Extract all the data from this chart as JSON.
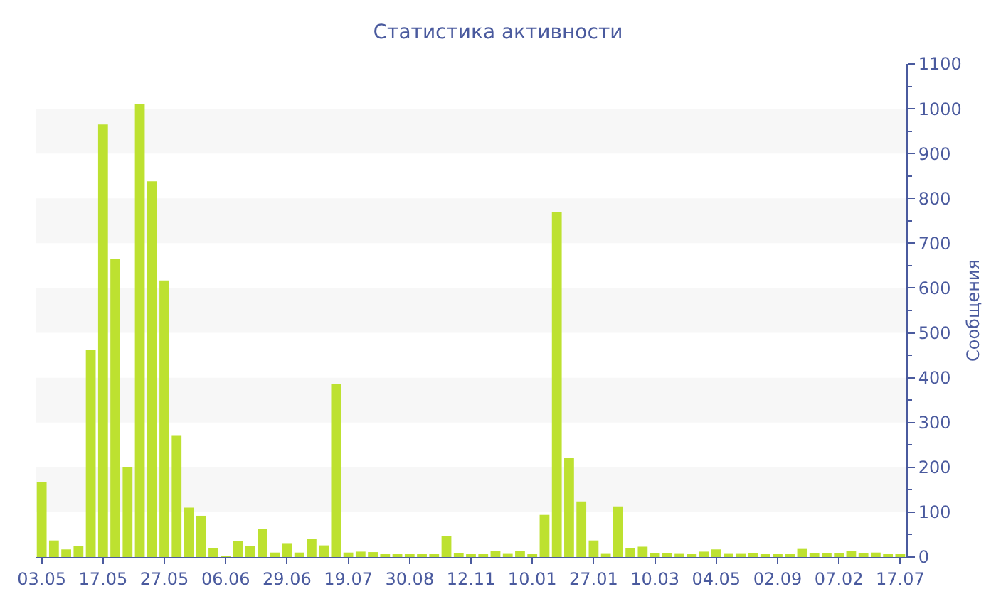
{
  "chart_data": {
    "type": "bar",
    "title": "Статистика активности",
    "y2label": "Сообщения",
    "categories": [
      "03.05",
      null,
      null,
      null,
      null,
      "17.05",
      null,
      null,
      null,
      null,
      "27.05",
      null,
      null,
      null,
      null,
      "06.06",
      null,
      null,
      null,
      null,
      "29.06",
      null,
      null,
      null,
      null,
      "19.07",
      null,
      null,
      null,
      null,
      "30.08",
      null,
      null,
      null,
      null,
      "12.11",
      null,
      null,
      null,
      null,
      "10.01",
      null,
      null,
      null,
      null,
      "27.01",
      null,
      null,
      null,
      null,
      "10.03",
      null,
      null,
      null,
      null,
      "04.05",
      null,
      null,
      null,
      null,
      "02.09",
      null,
      null,
      null,
      null,
      "07.02",
      null,
      null,
      null,
      null,
      "17.07"
    ],
    "series": [
      {
        "color": "#bde130",
        "axis": "y2",
        "values": [
          168,
          37,
          17,
          25,
          462,
          965,
          664,
          200,
          1010,
          838,
          617,
          272,
          110,
          92,
          20,
          3,
          36,
          24,
          62,
          10,
          31,
          10,
          40,
          26,
          385,
          10,
          12,
          11,
          5,
          5,
          6,
          4,
          6,
          47,
          8,
          6,
          6,
          13,
          7,
          13,
          6,
          94,
          770,
          222,
          124,
          37,
          7,
          113,
          20,
          23,
          9,
          8,
          7,
          6,
          12,
          17,
          7,
          7,
          8,
          4,
          4,
          4,
          18,
          8,
          9,
          9,
          13,
          8,
          10,
          5,
          5
        ]
      }
    ],
    "y2lim": [
      0,
      1100
    ],
    "y2ticks": [
      0,
      100,
      200,
      300,
      400,
      500,
      600,
      700,
      800,
      900,
      1000,
      1100
    ],
    "grid": false,
    "bands": [
      {
        "axis": "y2",
        "from": 100,
        "to": 200,
        "color": "#f7f7f7"
      },
      {
        "axis": "y2",
        "from": 300,
        "to": 400,
        "color": "#f7f7f7"
      },
      {
        "axis": "y2",
        "from": 500,
        "to": 600,
        "color": "#f7f7f7"
      },
      {
        "axis": "y2",
        "from": 700,
        "to": 800,
        "color": "#f7f7f7"
      },
      {
        "axis": "y2",
        "from": 900,
        "to": 1000,
        "color": "#f7f7f7"
      }
    ]
  }
}
